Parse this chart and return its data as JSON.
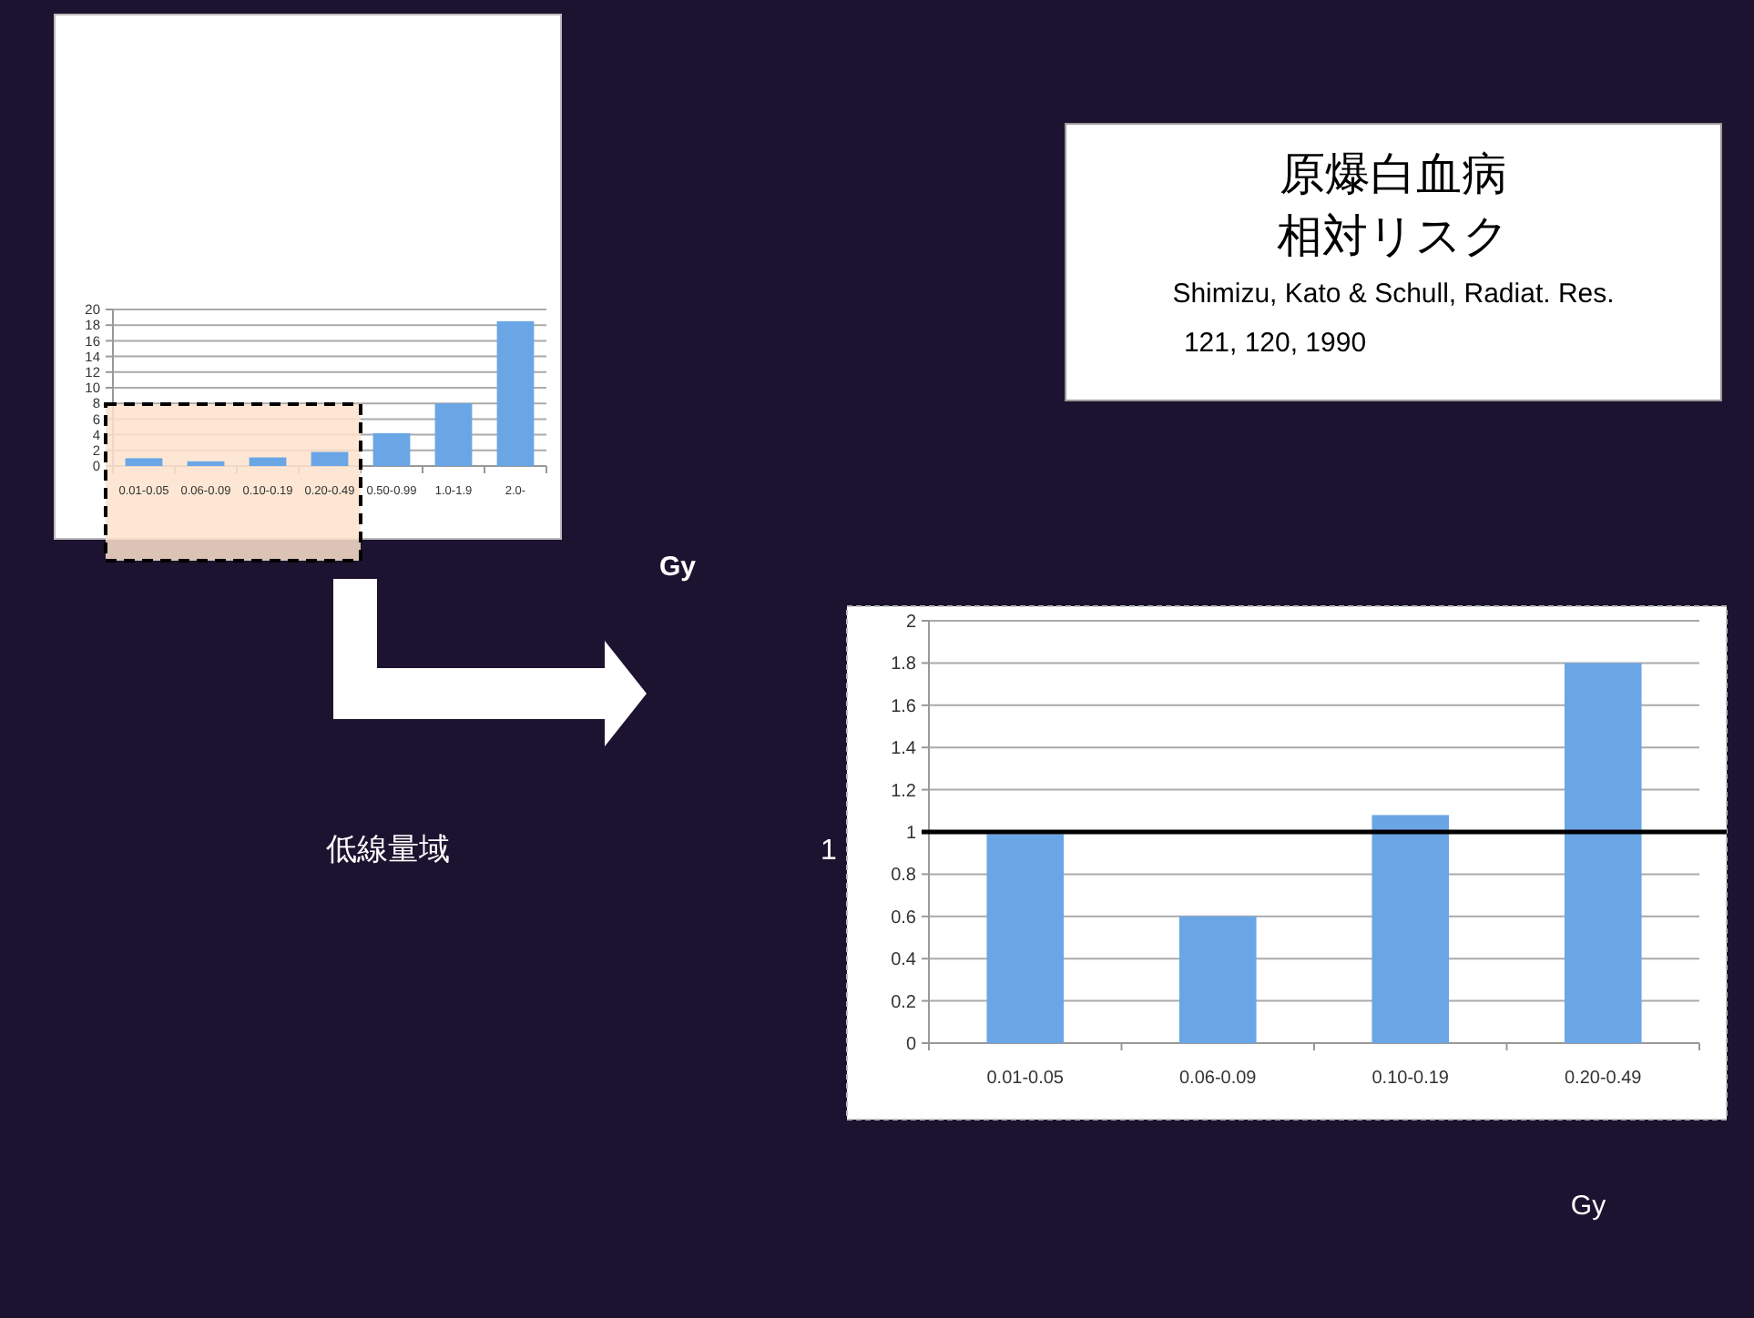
{
  "chart_data": [
    {
      "type": "bar",
      "xlabel": "Gy",
      "categories": [
        "0.01-0.05",
        "0.06-0.09",
        "0.10-0.19",
        "0.20-0.49",
        "0.50-0.99",
        "1.0-1.9",
        "2.0-"
      ],
      "values": [
        1.0,
        0.6,
        1.1,
        1.8,
        4.2,
        8.0,
        18.5
      ],
      "color": "#6aa6e6",
      "ylim": [
        0,
        20
      ],
      "yticks": [
        0,
        2,
        4,
        6,
        8,
        10,
        12,
        14,
        16,
        18,
        20
      ],
      "grid": "y",
      "bands": [
        {
          "axis": "x",
          "from": "0.01-0.05",
          "to": "0.20-0.49",
          "color": "#fde3cc"
        }
      ]
    },
    {
      "type": "other",
      "title": "原爆白血病",
      "subtitle": "相対リスク",
      "annotations": [
        "Shimizu, Kato & Schull, Radiat. Res.",
        "121, 120, 1990"
      ]
    },
    {
      "type": "bar",
      "xlabel": "Gy",
      "annotations": [
        "低線量域"
      ],
      "categories": [
        "0.01-0.05",
        "0.06-0.09",
        "0.10-0.19",
        "0.20-0.49"
      ],
      "values": [
        0.99,
        0.6,
        1.08,
        1.8
      ],
      "color": "#6aa6e6",
      "ylim": [
        0,
        2
      ],
      "yticks": [
        0,
        0.2,
        0.4,
        0.6,
        0.8,
        1,
        1.2,
        1.4,
        1.6,
        1.8,
        2
      ],
      "grid": "y",
      "ref_lines": [
        {
          "axis": "y",
          "value": 1,
          "label": "1",
          "color": "#000000"
        }
      ]
    }
  ]
}
